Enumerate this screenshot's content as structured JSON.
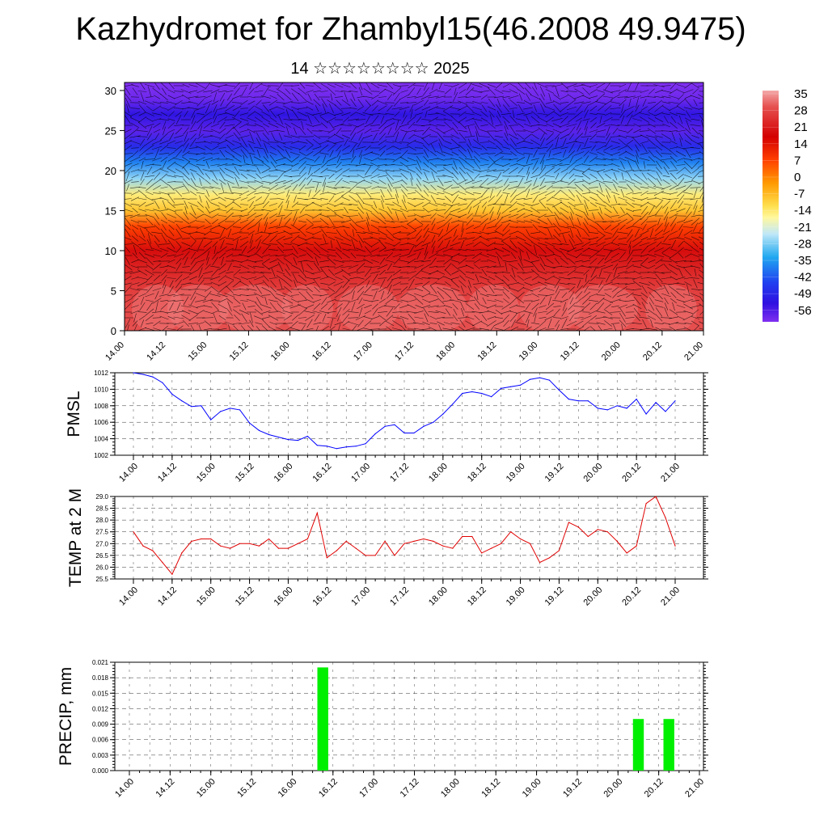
{
  "header": {
    "title": "Kazhydromet for Zhambyl15(46.2008 49.9475)",
    "subtitle": "14 ☆☆☆☆☆☆☆☆ 2025"
  },
  "time_ticks": [
    "14.00",
    "14.12",
    "15.00",
    "15.12",
    "16.00",
    "16.12",
    "17.00",
    "17.12",
    "18.00",
    "18.12",
    "19.00",
    "19.12",
    "20.00",
    "20.12",
    "21.00"
  ],
  "chart_data": [
    {
      "type": "heatmap",
      "name": "temperature-wind-cross-section",
      "x_ticks": [
        "14.00",
        "14.12",
        "15.00",
        "15.12",
        "16.00",
        "16.12",
        "17.00",
        "17.12",
        "18.00",
        "18.12",
        "19.00",
        "19.12",
        "20.00",
        "20.12",
        "21.00"
      ],
      "y_ticks": [
        "0",
        "5",
        "10",
        "15",
        "20",
        "25",
        "30"
      ],
      "ylim": [
        0,
        31
      ],
      "colorbar_labels": [
        "35",
        "28",
        "21",
        "14",
        "7",
        "0",
        "-7",
        "-14",
        "-21",
        "-28",
        "-35",
        "-42",
        "-49",
        "-56"
      ],
      "colorbar_range": [
        -60,
        38
      ],
      "level_temperature_profile": [
        [
          0,
          31
        ],
        [
          5,
          28
        ],
        [
          10,
          20
        ],
        [
          13,
          8
        ],
        [
          15,
          -8
        ],
        [
          17,
          -14
        ],
        [
          19,
          -24
        ],
        [
          21,
          -35
        ],
        [
          23,
          -46
        ],
        [
          25,
          -56
        ],
        [
          27,
          -50
        ],
        [
          29,
          -58
        ],
        [
          31,
          -60
        ]
      ]
    },
    {
      "type": "line",
      "name": "PMSL",
      "ylabel": "PMSL",
      "yticks": [
        "1012",
        "1010",
        "1008",
        "1006",
        "1004",
        "1002"
      ],
      "ylim": [
        1002,
        1012
      ],
      "x_ticks": [
        "14.00",
        "14.12",
        "15.00",
        "15.12",
        "16.00",
        "16.12",
        "17.00",
        "17.12",
        "18.00",
        "18.12",
        "19.00",
        "19.12",
        "20.00",
        "20.12",
        "21.00"
      ],
      "series_color": "#0000ff",
      "values": [
        1012.0,
        1011.8,
        1011.5,
        1010.8,
        1009.4,
        1008.6,
        1007.9,
        1008.0,
        1006.3,
        1007.3,
        1007.7,
        1007.5,
        1005.9,
        1005.0,
        1004.5,
        1004.2,
        1003.9,
        1003.8,
        1004.3,
        1003.2,
        1003.1,
        1002.8,
        1003.0,
        1003.1,
        1003.4,
        1004.6,
        1005.5,
        1005.7,
        1004.7,
        1004.7,
        1005.5,
        1006.0,
        1007.0,
        1008.2,
        1009.5,
        1009.7,
        1009.5,
        1009.1,
        1010.1,
        1010.3,
        1010.5,
        1011.2,
        1011.4,
        1011.1,
        1009.9,
        1008.8,
        1008.6,
        1008.6,
        1007.7,
        1007.5,
        1008.0,
        1007.7,
        1008.8,
        1007.0,
        1008.4,
        1007.3,
        1008.6
      ]
    },
    {
      "type": "line",
      "name": "TEMP at 2 M",
      "ylabel": "TEMP at 2 M",
      "yticks": [
        "29.0",
        "28.5",
        "28.0",
        "27.5",
        "27.0",
        "26.5",
        "26.0",
        "25.5"
      ],
      "ylim": [
        25.5,
        29.0
      ],
      "x_ticks": [
        "14.00",
        "14.12",
        "15.00",
        "15.12",
        "16.00",
        "16.12",
        "17.00",
        "17.12",
        "18.00",
        "18.12",
        "19.00",
        "19.12",
        "20.00",
        "20.12",
        "21.00"
      ],
      "series_color": "#e00000",
      "values": [
        27.5,
        26.9,
        26.7,
        26.2,
        25.7,
        26.6,
        27.1,
        27.2,
        27.2,
        26.9,
        26.8,
        27.0,
        27.0,
        26.9,
        27.2,
        26.8,
        26.8,
        27.0,
        27.2,
        28.3,
        26.4,
        26.7,
        27.1,
        26.8,
        26.5,
        26.5,
        27.1,
        26.5,
        27.0,
        27.1,
        27.2,
        27.1,
        26.9,
        26.8,
        27.3,
        27.3,
        26.6,
        26.8,
        27.0,
        27.5,
        27.2,
        27.0,
        26.2,
        26.4,
        26.7,
        27.9,
        27.7,
        27.3,
        27.6,
        27.5,
        27.1,
        26.6,
        26.9,
        28.7,
        29.0,
        28.1,
        26.9
      ]
    },
    {
      "type": "bar",
      "name": "PRECIP, mm",
      "ylabel": "PRECIP, mm",
      "yticks": [
        "0.021",
        "0.018",
        "0.015",
        "0.012",
        "0.009",
        "0.006",
        "0.003",
        "0.000"
      ],
      "ylim": [
        0,
        0.021
      ],
      "x_ticks": [
        "14.00",
        "14.12",
        "15.00",
        "15.12",
        "16.00",
        "16.12",
        "17.00",
        "17.12",
        "18.00",
        "18.12",
        "19.00",
        "19.12",
        "20.00",
        "20.12",
        "21.00"
      ],
      "bar_color": "#00ee00",
      "bars": [
        {
          "x_hours": 57,
          "value": 0.02
        },
        {
          "x_hours": 150,
          "value": 0.01
        },
        {
          "x_hours": 159,
          "value": 0.01
        }
      ]
    }
  ]
}
